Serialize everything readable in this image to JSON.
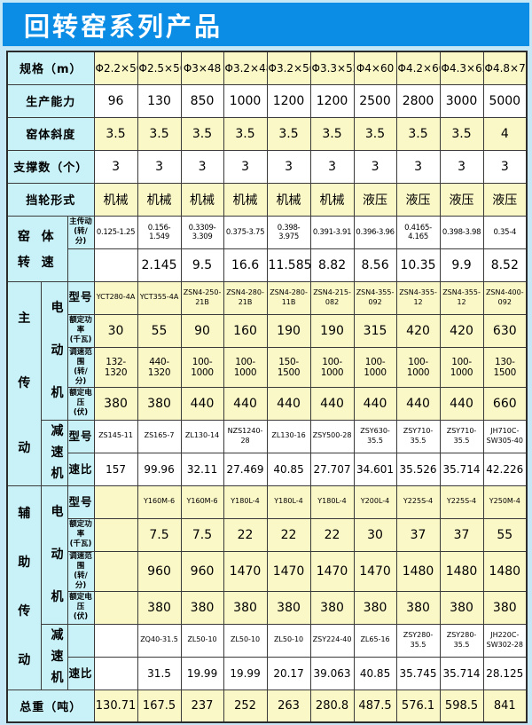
{
  "title": "回转窑系列产品",
  "colors": {
    "banner_blue": "#0b8de6",
    "header_cyan": "#c8f1f8",
    "row_yellow": "#fbf8c8",
    "row_white": "#ffffff",
    "border": "#3a3a3a",
    "page_background": "#c6e7f5",
    "title_text": "#ffffff"
  },
  "labels": {
    "spec": "规格（m）",
    "capacity": "生产能力",
    "slope": "窑体斜度",
    "supports": "支撑数（个）",
    "wheel": "挡轮形式",
    "kiln_body": "窑 体",
    "rotation_speed": "转 速",
    "main_drive_sub": "主传动\n(转/分)",
    "main_drive": "主传动",
    "aux_drive": "辅助传动",
    "motor": "电动机",
    "reducer": "减速机",
    "model": "型号",
    "rated_power": "额定功率\n(千瓦)",
    "speed_range": "调速范围\n(转/分)",
    "rated_voltage": "额定电压\n(伏)",
    "ratio": "速比",
    "weight": "总重（吨）"
  },
  "rows": {
    "spec": [
      "Φ2.2×50",
      "Φ2.5×50",
      "Φ3×48",
      "Φ3.2×48",
      "Φ3.2×50",
      "Φ3.3×52",
      "Φ4×60",
      "Φ4.2×60",
      "Φ4.3×62",
      "Φ4.8×74"
    ],
    "capacity": [
      "96",
      "130",
      "850",
      "1000",
      "1200",
      "1200",
      "2500",
      "2800",
      "3000",
      "5000"
    ],
    "slope": [
      "3.5",
      "3.5",
      "3.5",
      "3.5",
      "3.5",
      "3.5",
      "3.5",
      "3.5",
      "3.5",
      "4"
    ],
    "supports": [
      "3",
      "3",
      "3",
      "3",
      "3",
      "3",
      "3",
      "3",
      "3",
      "3"
    ],
    "wheel": [
      "机械",
      "机械",
      "机械",
      "机械",
      "机械",
      "机械",
      "液压",
      "液压",
      "液压",
      "液压"
    ],
    "kiln_speed_range": [
      "0.125-1.25",
      "0.156-1.549",
      "0.3309-3.309",
      "0.375-3.75",
      "0.398-3.975",
      "0.391-3.91",
      "0.396-3.96",
      "0.4165-4.165",
      "0.398-3.98",
      "0.35-4"
    ],
    "kiln_speed_single": [
      "",
      "2.145",
      "9.5",
      "16.6",
      "11.585",
      "8.82",
      "8.56",
      "10.35",
      "9.9",
      "8.52"
    ],
    "main_motor_model": [
      "YCT280-4A",
      "YCT355-4A",
      "ZSN4-250-21B",
      "ZSN4-280-21B",
      "ZSN4-280-11B",
      "ZSN4-215-082",
      "ZSN4-355-092",
      "ZSN4-355-12",
      "ZSN4-355-12",
      "ZSN4-400-092"
    ],
    "main_motor_power": [
      "30",
      "55",
      "90",
      "160",
      "190",
      "190",
      "315",
      "420",
      "420",
      "630"
    ],
    "main_motor_speed_range": [
      "132-1320",
      "440-1320",
      "100-1000",
      "100-1000",
      "150-1500",
      "100-1000",
      "100-1000",
      "100-1000",
      "100-1000",
      "130-1500"
    ],
    "main_motor_voltage": [
      "380",
      "380",
      "440",
      "440",
      "440",
      "440",
      "440",
      "440",
      "440",
      "660"
    ],
    "main_reducer_model": [
      "ZS145-11",
      "ZS165-7",
      "ZL130-14",
      "NZS1240-28",
      "ZL130-16",
      "ZSY500-28",
      "ZSY630-35.5",
      "ZSY710-35.5",
      "ZSY710-35.5",
      "JH710C-SW305-40"
    ],
    "main_reducer_ratio": [
      "157",
      "99.96",
      "32.11",
      "27.469",
      "40.85",
      "27.707",
      "34.601",
      "35.526",
      "35.714",
      "42.226"
    ],
    "aux_motor_model": [
      "",
      "Y160M-6",
      "Y160M-6",
      "Y180L-4",
      "Y180L-4",
      "Y180L-4",
      "Y200L-4",
      "Y225S-4",
      "Y225S-4",
      "Y250M-4"
    ],
    "aux_motor_power": [
      "",
      "7.5",
      "7.5",
      "22",
      "22",
      "22",
      "30",
      "37",
      "37",
      "55"
    ],
    "aux_motor_speed_range": [
      "",
      "960",
      "960",
      "1470",
      "1470",
      "1470",
      "1470",
      "1480",
      "1480",
      "1480"
    ],
    "aux_motor_voltage": [
      "",
      "380",
      "380",
      "380",
      "380",
      "380",
      "380",
      "380",
      "380",
      "380"
    ],
    "aux_reducer_model": [
      "",
      "ZQ40-31.5",
      "ZL50-10",
      "ZL50-10",
      "ZL50-10",
      "ZSY224-40",
      "ZL65-16",
      "ZSY280-35.5",
      "ZSY280-35.5",
      "JH220C-SW302-28"
    ],
    "aux_reducer_ratio": [
      "",
      "31.5",
      "19.99",
      "19.99",
      "20.17",
      "39.063",
      "40.85",
      "35.745",
      "35.714",
      "28.125"
    ],
    "weight": [
      "130.71",
      "167.5",
      "237",
      "252",
      "263",
      "280.8",
      "487.5",
      "576.1",
      "598.5",
      "841"
    ]
  }
}
